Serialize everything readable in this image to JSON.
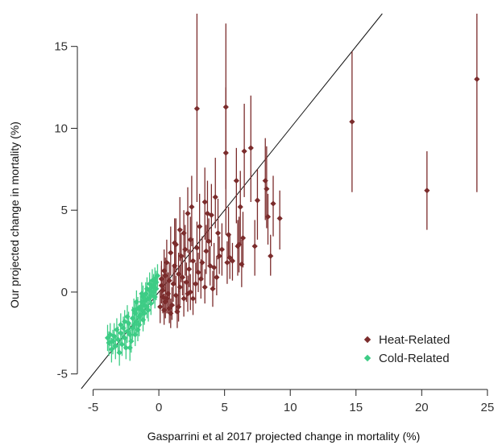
{
  "chart_data": {
    "type": "scatter",
    "title": "",
    "xlabel": "Gasparrini et al 2017 projected change in mortality (%)",
    "ylabel": "Our projected change in mortality (%)",
    "xlim": [
      -6.2,
      25.5
    ],
    "ylim": [
      -5.9,
      17
    ],
    "xticks": [
      -5,
      0,
      5,
      10,
      15,
      20,
      25
    ],
    "yticks": [
      -5,
      0,
      5,
      10,
      15
    ],
    "xtick_labels": [
      "-5",
      "0",
      "5",
      "10",
      "15",
      "20",
      "25"
    ],
    "ytick_labels": [
      "-5",
      "0",
      "5",
      "10",
      "15"
    ],
    "grid": false,
    "legend_position": "bottom-right",
    "reference_line": "y = x",
    "series": [
      {
        "name": "Heat-Related",
        "color": "#7b2c2c",
        "marker": "diamond",
        "points": [
          [
            2.9,
            11.2,
            5.5,
            17.0
          ],
          [
            5.1,
            11.3,
            6.3,
            16.4
          ],
          [
            14.7,
            10.4,
            6.1,
            14.7
          ],
          [
            24.2,
            13.0,
            6.1,
            17.0
          ],
          [
            20.4,
            6.2,
            3.8,
            8.6
          ],
          [
            5.1,
            8.5,
            3.5,
            12.5
          ],
          [
            7.0,
            8.8,
            5.5,
            12.0
          ],
          [
            6.5,
            8.6,
            5.8,
            11.5
          ],
          [
            8.1,
            6.8,
            4.4,
            9.4
          ],
          [
            8.2,
            6.3,
            3.9,
            8.9
          ],
          [
            9.2,
            4.5,
            2.6,
            6.2
          ],
          [
            5.9,
            6.8,
            4.2,
            8.8
          ],
          [
            4.3,
            5.8,
            3.9,
            8.2
          ],
          [
            3.5,
            5.5,
            3.2,
            7.6
          ],
          [
            2.5,
            5.2,
            2.8,
            7.1
          ],
          [
            6.2,
            5.2,
            2.9,
            7.4
          ],
          [
            7.5,
            5.6,
            3.2,
            7.5
          ],
          [
            8.7,
            5.4,
            3.4,
            7.1
          ],
          [
            8.3,
            4.6,
            2.9,
            6.0
          ],
          [
            3.7,
            4.8,
            3.0,
            6.8
          ],
          [
            4.0,
            4.7,
            2.8,
            6.6
          ],
          [
            2.2,
            4.8,
            2.4,
            6.4
          ],
          [
            3.1,
            4.0,
            2.0,
            6.0
          ],
          [
            1.6,
            3.8,
            1.9,
            5.8
          ],
          [
            4.5,
            3.6,
            2.0,
            5.7
          ],
          [
            5.3,
            3.5,
            2.1,
            5.2
          ],
          [
            6.4,
            3.3,
            1.5,
            4.9
          ],
          [
            8.5,
            2.2,
            1.0,
            3.5
          ],
          [
            7.3,
            2.8,
            1.0,
            4.4
          ],
          [
            6.1,
            2.9,
            1.2,
            4.6
          ],
          [
            2.9,
            2.7,
            1.2,
            4.3
          ],
          [
            3.6,
            2.5,
            1.1,
            4.1
          ],
          [
            4.8,
            2.6,
            1.0,
            4.2
          ],
          [
            1.3,
            2.9,
            1.2,
            4.5
          ],
          [
            2.0,
            2.6,
            1.0,
            4.1
          ],
          [
            0.9,
            2.4,
            1.0,
            4.0
          ],
          [
            1.7,
            2.2,
            0.6,
            3.6
          ],
          [
            2.6,
            1.9,
            0.5,
            3.3
          ],
          [
            3.3,
            1.8,
            0.7,
            3.4
          ],
          [
            4.2,
            1.5,
            0.3,
            3.0
          ],
          [
            5.6,
            1.9,
            0.7,
            3.0
          ],
          [
            4.4,
            0.9,
            -0.2,
            2.2
          ],
          [
            3.9,
            1.6,
            0.4,
            2.8
          ],
          [
            5.2,
            1.8,
            0.5,
            3.1
          ],
          [
            0.6,
            1.8,
            0.5,
            3.2
          ],
          [
            1.2,
            1.6,
            0.4,
            2.9
          ],
          [
            2.3,
            1.4,
            0.3,
            2.6
          ],
          [
            0.4,
            1.3,
            0.2,
            2.6
          ],
          [
            1.5,
            1.1,
            0.0,
            2.4
          ],
          [
            3.0,
            1.2,
            0.0,
            2.4
          ],
          [
            2.8,
            0.5,
            -0.7,
            1.8
          ],
          [
            3.2,
            0.8,
            -0.4,
            2.0
          ],
          [
            2.1,
            0.6,
            -0.6,
            1.8
          ],
          [
            1.6,
            0.3,
            -0.8,
            1.6
          ],
          [
            0.8,
            0.7,
            -0.4,
            1.8
          ],
          [
            0.2,
            0.4,
            -0.7,
            1.6
          ],
          [
            0.3,
            -0.3,
            -1.3,
            0.9
          ],
          [
            0.7,
            -0.1,
            -1.3,
            1.2
          ],
          [
            1.3,
            -0.2,
            -1.3,
            1.0
          ],
          [
            1.9,
            -0.4,
            -1.5,
            0.7
          ],
          [
            2.4,
            0.0,
            -1.1,
            1.1
          ],
          [
            1.0,
            -0.8,
            -1.7,
            0.3
          ],
          [
            0.4,
            -1.1,
            -2.0,
            -0.1
          ],
          [
            1.4,
            -1.2,
            -2.2,
            -0.2
          ],
          [
            0.9,
            -1.3,
            -2.2,
            -0.4
          ],
          [
            0.5,
            -0.6,
            -1.6,
            0.3
          ],
          [
            0.1,
            -0.9,
            -1.9,
            0.1
          ],
          [
            0.6,
            -0.4,
            -1.3,
            0.6
          ],
          [
            1.8,
            0.9,
            -0.2,
            2.1
          ],
          [
            1.1,
            0.5,
            -0.6,
            1.7
          ],
          [
            0.3,
            0.1,
            -0.9,
            1.1
          ],
          [
            0.2,
            0.8,
            -0.3,
            1.9
          ],
          [
            0.5,
            1.0,
            -0.1,
            2.1
          ],
          [
            1.2,
            3.0,
            1.6,
            4.5
          ],
          [
            2.4,
            3.2,
            1.8,
            4.6
          ],
          [
            6.0,
            2.8,
            1.0,
            4.4
          ],
          [
            6.3,
            1.7,
            0.3,
            3.2
          ],
          [
            5.4,
            2.1,
            0.8,
            3.6
          ],
          [
            4.6,
            2.2,
            1.1,
            3.4
          ],
          [
            3.5,
            0.3,
            -0.7,
            1.4
          ],
          [
            4.1,
            0.2,
            -0.9,
            1.3
          ],
          [
            2.6,
            -0.4,
            -1.4,
            0.6
          ],
          [
            2.2,
            -0.1,
            -1.2,
            1.0
          ],
          [
            1.5,
            -0.9,
            -1.8,
            0.1
          ],
          [
            0.8,
            -1.0,
            -1.9,
            0.0
          ],
          [
            3.8,
            3.1,
            1.7,
            4.5
          ],
          [
            1.9,
            3.6,
            2.1,
            5.0
          ]
        ]
      },
      {
        "name": "Cold-Related",
        "color": "#3dcc85",
        "marker": "diamond",
        "points": [
          [
            -3.9,
            -2.8,
            -3.6,
            -2.0
          ],
          [
            -3.8,
            -3.1,
            -3.9,
            -2.4
          ],
          [
            -3.6,
            -3.5,
            -4.3,
            -2.8
          ],
          [
            -3.4,
            -2.7,
            -3.5,
            -1.9
          ],
          [
            -3.3,
            -3.3,
            -4.1,
            -2.6
          ],
          [
            -3.1,
            -2.9,
            -3.7,
            -2.1
          ],
          [
            -3.0,
            -3.7,
            -4.5,
            -3.0
          ],
          [
            -2.9,
            -2.5,
            -3.2,
            -1.8
          ],
          [
            -2.8,
            -3.2,
            -3.9,
            -2.5
          ],
          [
            -2.7,
            -2.2,
            -2.9,
            -1.5
          ],
          [
            -2.6,
            -2.8,
            -3.5,
            -2.1
          ],
          [
            -2.5,
            -3.4,
            -4.1,
            -2.8
          ],
          [
            -2.4,
            -2.4,
            -3.1,
            -1.7
          ],
          [
            -2.3,
            -1.9,
            -2.6,
            -1.2
          ],
          [
            -2.2,
            -2.6,
            -3.3,
            -1.9
          ],
          [
            -2.1,
            -3.0,
            -3.7,
            -2.3
          ],
          [
            -2.0,
            -2.2,
            -2.9,
            -1.5
          ],
          [
            -2.0,
            -1.6,
            -2.3,
            -0.9
          ],
          [
            -1.9,
            -2.0,
            -2.7,
            -1.3
          ],
          [
            -1.8,
            -2.6,
            -3.3,
            -1.9
          ],
          [
            -1.8,
            -1.3,
            -2.0,
            -0.6
          ],
          [
            -1.7,
            -1.8,
            -2.5,
            -1.1
          ],
          [
            -1.6,
            -2.3,
            -3.0,
            -1.6
          ],
          [
            -1.6,
            -1.0,
            -1.7,
            -0.3
          ],
          [
            -1.5,
            -1.5,
            -2.2,
            -0.8
          ],
          [
            -1.5,
            -2.0,
            -2.7,
            -1.3
          ],
          [
            -1.4,
            -0.9,
            -1.6,
            -0.2
          ],
          [
            -1.4,
            -1.4,
            -2.1,
            -0.7
          ],
          [
            -1.3,
            -0.6,
            -1.3,
            0.1
          ],
          [
            -1.3,
            -1.1,
            -1.8,
            -0.4
          ],
          [
            -1.2,
            -1.7,
            -2.4,
            -1.0
          ],
          [
            -1.2,
            -0.3,
            -1.0,
            0.4
          ],
          [
            -1.1,
            -0.8,
            -1.5,
            -0.1
          ],
          [
            -1.1,
            -1.3,
            -2.0,
            -0.6
          ],
          [
            -1.0,
            -0.5,
            -1.2,
            0.2
          ],
          [
            -1.0,
            -0.1,
            -0.8,
            0.6
          ],
          [
            -0.9,
            -0.9,
            -1.6,
            -0.2
          ],
          [
            -0.9,
            0.2,
            -0.5,
            0.9
          ],
          [
            -0.8,
            -0.4,
            -1.1,
            0.3
          ],
          [
            -0.8,
            -1.1,
            -1.8,
            -0.4
          ],
          [
            -0.7,
            0.1,
            -0.6,
            0.8
          ],
          [
            -0.7,
            0.5,
            -0.2,
            1.2
          ],
          [
            -0.6,
            -0.2,
            -0.9,
            0.5
          ],
          [
            -0.6,
            -0.7,
            -1.4,
            0.0
          ],
          [
            -0.5,
            0.3,
            -0.4,
            1.0
          ],
          [
            -0.5,
            0.7,
            0.0,
            1.4
          ],
          [
            -0.4,
            0.0,
            -0.7,
            0.7
          ],
          [
            -0.4,
            0.4,
            -0.3,
            1.1
          ],
          [
            -0.3,
            0.8,
            0.1,
            1.5
          ],
          [
            -0.3,
            -0.3,
            -1.0,
            0.4
          ],
          [
            -0.2,
            0.2,
            -0.5,
            0.9
          ],
          [
            -0.2,
            0.6,
            -0.1,
            1.3
          ],
          [
            -0.1,
            1.0,
            0.3,
            1.7
          ],
          [
            -2.6,
            -1.8,
            -2.5,
            -1.1
          ],
          [
            -3.2,
            -2.3,
            -3.0,
            -1.6
          ],
          [
            -2.9,
            -2.0,
            -2.7,
            -1.3
          ],
          [
            -2.4,
            -1.5,
            -2.2,
            -0.8
          ],
          [
            -1.9,
            -1.1,
            -1.8,
            -0.4
          ],
          [
            -1.7,
            -0.6,
            -1.3,
            0.1
          ],
          [
            -1.3,
            -0.1,
            -0.8,
            0.6
          ],
          [
            -3.5,
            -3.0,
            -3.8,
            -2.3
          ],
          [
            -2.2,
            -3.4,
            -4.2,
            -2.7
          ],
          [
            -3.7,
            -2.6,
            -3.3,
            -1.9
          ]
        ]
      }
    ]
  }
}
